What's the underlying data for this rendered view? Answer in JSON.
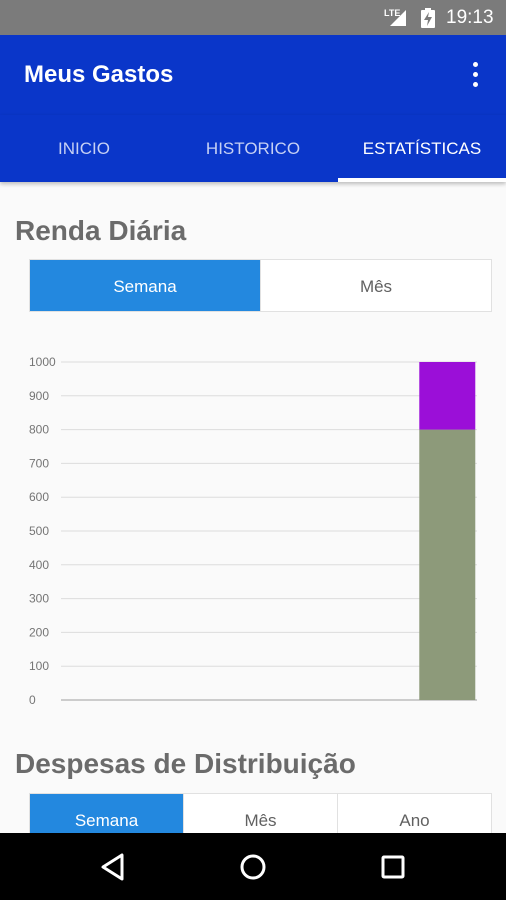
{
  "status_bar": {
    "network": "LTE",
    "time": "19:13"
  },
  "app_bar": {
    "title": "Meus Gastos",
    "menu_icon": "more-vert-icon"
  },
  "tabs": [
    {
      "label": "INICIO",
      "active": false
    },
    {
      "label": "HISTORICO",
      "active": false
    },
    {
      "label": "ESTATÍSTICAS",
      "active": true
    }
  ],
  "renda": {
    "title": "Renda Diária",
    "segments": [
      {
        "label": "Semana",
        "active": true
      },
      {
        "label": "Mês",
        "active": false
      }
    ]
  },
  "chart_data": {
    "type": "bar",
    "stacked": true,
    "ylim": [
      0,
      1000
    ],
    "yticks": [
      "0",
      "100",
      "200",
      "300",
      "400",
      "500",
      "600",
      "700",
      "800",
      "900",
      "1000"
    ],
    "categories": [
      "",
      "",
      "",
      "",
      "",
      "",
      ""
    ],
    "series": [
      {
        "values": [
          0,
          0,
          0,
          0,
          0,
          0,
          800
        ],
        "color": "#8d9a7a"
      },
      {
        "values": [
          0,
          0,
          0,
          0,
          0,
          0,
          200
        ],
        "color": "#9b0fd8"
      }
    ],
    "grid": true,
    "legend": false
  },
  "despesas": {
    "title": "Despesas de Distribuição",
    "segments": [
      {
        "label": "Semana",
        "active": true
      },
      {
        "label": "Mês",
        "active": false
      },
      {
        "label": "Ano",
        "active": false
      }
    ]
  },
  "colors": {
    "primary": "#0a36c9",
    "accent": "#2388df"
  },
  "nav_bar": {
    "icons": [
      "back-icon",
      "home-icon",
      "recents-icon"
    ]
  }
}
